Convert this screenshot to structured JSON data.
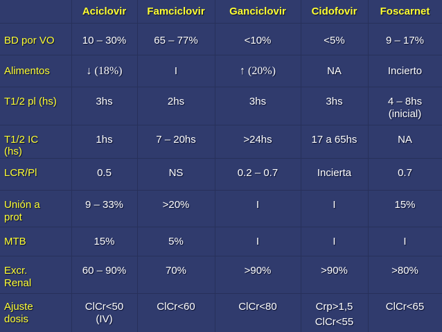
{
  "table": {
    "headers": [
      "Aciclovir",
      "Famciclovir",
      "Ganciclovir",
      "Cidofovir",
      "Foscarnet"
    ],
    "rows": [
      {
        "label": [
          "BD por VO"
        ],
        "cells": [
          [
            "10 – 30%"
          ],
          [
            "65 – 77%"
          ],
          [
            "<10%"
          ],
          [
            "<5%"
          ],
          [
            "9 – 17%"
          ]
        ]
      },
      {
        "label": [
          "Alimentos"
        ],
        "cells": [
          [
            "↓ (18%)"
          ],
          [
            "I"
          ],
          [
            "↑ (20%)"
          ],
          [
            "NA"
          ],
          [
            "Incierto"
          ]
        ]
      },
      {
        "label": [
          "T1/2 pl (hs)"
        ],
        "cells": [
          [
            "3hs"
          ],
          [
            "2hs"
          ],
          [
            "3hs"
          ],
          [
            "3hs"
          ],
          [
            "4 – 8hs",
            "(inicial)"
          ]
        ]
      },
      {
        "label": [
          "T1/2 IC",
          "(hs)"
        ],
        "cells": [
          [
            "1hs"
          ],
          [
            "7 – 20hs"
          ],
          [
            ">24hs"
          ],
          [
            "17 a 65hs"
          ],
          [
            "NA"
          ]
        ]
      },
      {
        "label": [
          "LCR/Pl"
        ],
        "cells": [
          [
            "0.5"
          ],
          [
            "NS"
          ],
          [
            "0.2 – 0.7"
          ],
          [
            "Incierta"
          ],
          [
            "0.7"
          ]
        ]
      },
      {
        "label": [
          "Unión a",
          "prot"
        ],
        "cells": [
          [
            "9 – 33%"
          ],
          [
            ">20%"
          ],
          [
            "I"
          ],
          [
            "I"
          ],
          [
            "15%"
          ]
        ]
      },
      {
        "label": [
          "MTB"
        ],
        "cells": [
          [
            "15%"
          ],
          [
            "5%"
          ],
          [
            "I"
          ],
          [
            "I"
          ],
          [
            "I"
          ]
        ]
      },
      {
        "label": [
          "Excr.",
          "Renal"
        ],
        "cells": [
          [
            "60 – 90%"
          ],
          [
            "70%"
          ],
          [
            ">90%"
          ],
          [
            ">90%"
          ],
          [
            ">80%"
          ]
        ]
      },
      {
        "label": [
          "Ajuste",
          "dosis"
        ],
        "cells": [
          [
            "ClCr<50",
            "(IV)"
          ],
          [
            "ClCr<60"
          ],
          [
            "ClCr<80"
          ],
          [
            "Crp>1,5",
            "ClCr<55"
          ],
          [
            "ClCr<65"
          ]
        ]
      }
    ]
  }
}
